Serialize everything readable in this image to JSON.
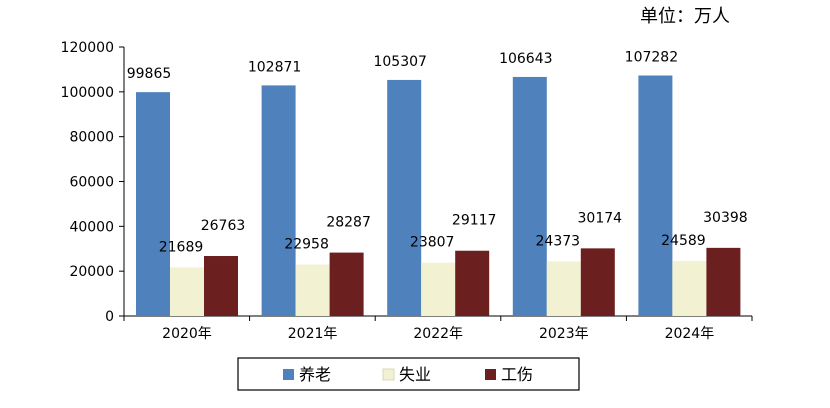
{
  "unit_label": "单位：万人",
  "colors": {
    "pension": "#4f81bd",
    "unemployment": "#f2f2d2",
    "injury": "#6b1f1f"
  },
  "chart_data": {
    "type": "bar",
    "categories": [
      "2020年",
      "2021年",
      "2022年",
      "2023年",
      "2024年"
    ],
    "series": [
      {
        "name": "养老",
        "values": [
          99865,
          102871,
          105307,
          106643,
          107282
        ]
      },
      {
        "name": "失业",
        "values": [
          21689,
          22958,
          23807,
          24373,
          24589
        ]
      },
      {
        "name": "工伤",
        "values": [
          26763,
          28287,
          29117,
          30174,
          30398
        ]
      }
    ],
    "ylim": [
      0,
      120000
    ],
    "yticks": [
      0,
      20000,
      40000,
      60000,
      80000,
      100000,
      120000
    ],
    "grid": false,
    "legend": "bottom",
    "data_labels": true
  }
}
